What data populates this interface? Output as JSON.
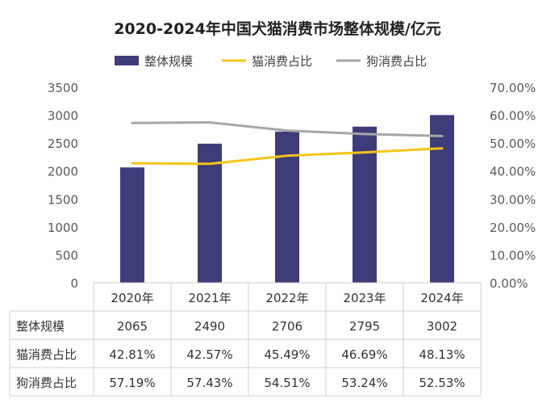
{
  "chart_data": {
    "type": "bar+line",
    "title": "2020-2024年中国犬猫消费市场整体规模/亿元",
    "categories": [
      "2020年",
      "2021年",
      "2022年",
      "2023年",
      "2024年"
    ],
    "series": [
      {
        "name": "整体规模",
        "type": "bar",
        "axis": "left",
        "color": "#3f3c7a",
        "values": [
          2065,
          2490,
          2706,
          2795,
          3002
        ],
        "labels": [
          "2065",
          "2490",
          "2706",
          "2795",
          "3002"
        ]
      },
      {
        "name": "猫消费占比",
        "type": "line",
        "axis": "right",
        "color": "#f5c518",
        "values": [
          42.81,
          42.57,
          45.49,
          46.69,
          48.13
        ],
        "labels": [
          "42.81%",
          "42.57%",
          "45.49%",
          "46.69%",
          "48.13%"
        ]
      },
      {
        "name": "狗消费占比",
        "type": "line",
        "axis": "right",
        "color": "#a6a6a6",
        "values": [
          57.19,
          57.43,
          54.51,
          53.24,
          52.53
        ],
        "labels": [
          "57.19%",
          "57.43%",
          "54.51%",
          "53.24%",
          "52.53%"
        ]
      }
    ],
    "left_axis": {
      "min": 0,
      "max": 3500,
      "ticks": [
        "0",
        "500",
        "1000",
        "1500",
        "2000",
        "2500",
        "3000",
        "3500"
      ]
    },
    "right_axis": {
      "min": 0,
      "max": 70,
      "ticks": [
        "0.00%",
        "10.00%",
        "20.00%",
        "30.00%",
        "40.00%",
        "50.00%",
        "60.00%",
        "70.00%"
      ]
    },
    "legend_position": "top",
    "grid": false,
    "data_table": true
  }
}
